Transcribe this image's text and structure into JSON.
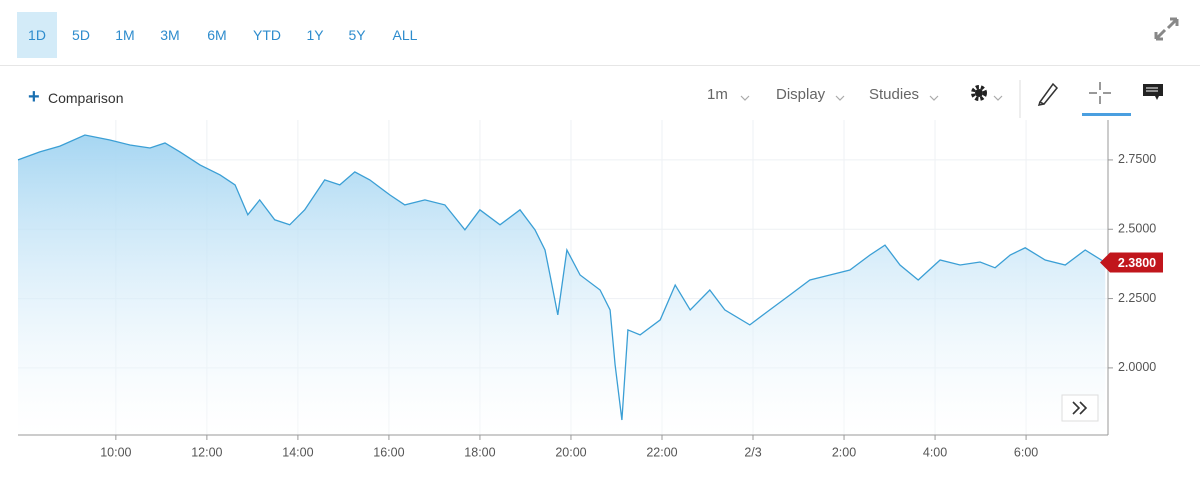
{
  "toolbar": {
    "ranges": [
      "1D",
      "5D",
      "1M",
      "3M",
      "6M",
      "YTD",
      "1Y",
      "5Y",
      "ALL"
    ],
    "comparison": "Comparison",
    "interval": "1m",
    "menus": [
      "Display",
      "Studies"
    ]
  },
  "chart_data": {
    "type": "area",
    "color": "#3b9fd5",
    "x": [
      7.85,
      8.33,
      8.77,
      9.32,
      9.87,
      10.31,
      10.75,
      11.08,
      11.41,
      11.85,
      12.29,
      12.62,
      12.9,
      13.16,
      13.49,
      13.82,
      14.15,
      14.59,
      14.92,
      15.25,
      15.58,
      16.02,
      16.35,
      16.79,
      17.23,
      17.67,
      18.0,
      18.44,
      18.88,
      19.21,
      19.43,
      19.54,
      19.71,
      19.91,
      20.2,
      20.64,
      20.86,
      20.97,
      21.12,
      21.25,
      21.52,
      21.96,
      22.29,
      22.62,
      23.05,
      23.38,
      23.93,
      24.37,
      24.81,
      25.25,
      25.69,
      26.13,
      26.57,
      26.9,
      27.23,
      27.63,
      28.11,
      28.55,
      28.99,
      29.32,
      29.65,
      29.98,
      30.42,
      30.86,
      31.3,
      31.74
    ],
    "values": [
      2.75,
      2.779,
      2.8,
      2.84,
      2.822,
      2.804,
      2.793,
      2.811,
      2.779,
      2.732,
      2.696,
      2.66,
      2.552,
      2.606,
      2.534,
      2.516,
      2.57,
      2.678,
      2.66,
      2.707,
      2.678,
      2.624,
      2.588,
      2.606,
      2.588,
      2.498,
      2.57,
      2.516,
      2.57,
      2.498,
      2.425,
      2.335,
      2.191,
      2.425,
      2.335,
      2.281,
      2.209,
      2.011,
      1.812,
      2.137,
      2.119,
      2.173,
      2.299,
      2.209,
      2.281,
      2.209,
      2.155,
      2.209,
      2.263,
      2.317,
      2.335,
      2.353,
      2.407,
      2.443,
      2.371,
      2.317,
      2.389,
      2.371,
      2.382,
      2.361,
      2.407,
      2.433,
      2.389,
      2.371,
      2.425,
      2.38
    ],
    "xlim": [
      7.85,
      31.8
    ],
    "xticks": [
      {
        "value": 10,
        "label": "10:00"
      },
      {
        "value": 12,
        "label": "12:00"
      },
      {
        "value": 14,
        "label": "14:00"
      },
      {
        "value": 16,
        "label": "16:00"
      },
      {
        "value": 18,
        "label": "18:00"
      },
      {
        "value": 20,
        "label": "20:00"
      },
      {
        "value": 22,
        "label": "22:00"
      },
      {
        "value": 24,
        "label": "2/3"
      },
      {
        "value": 26,
        "label": "2:00"
      },
      {
        "value": 28,
        "label": "4:00"
      },
      {
        "value": 30,
        "label": "6:00"
      }
    ],
    "ylim": [
      1.758,
      2.894
    ],
    "yticks": [
      {
        "value": 2.0,
        "label": "2.0000"
      },
      {
        "value": 2.25,
        "label": "2.2500"
      },
      {
        "value": 2.5,
        "label": "2.5000"
      },
      {
        "value": 2.75,
        "label": "2.7500"
      }
    ],
    "last_price": {
      "value": 2.38,
      "label": "2.3800"
    },
    "last_price_color": "#c1161c",
    "grid": true
  }
}
